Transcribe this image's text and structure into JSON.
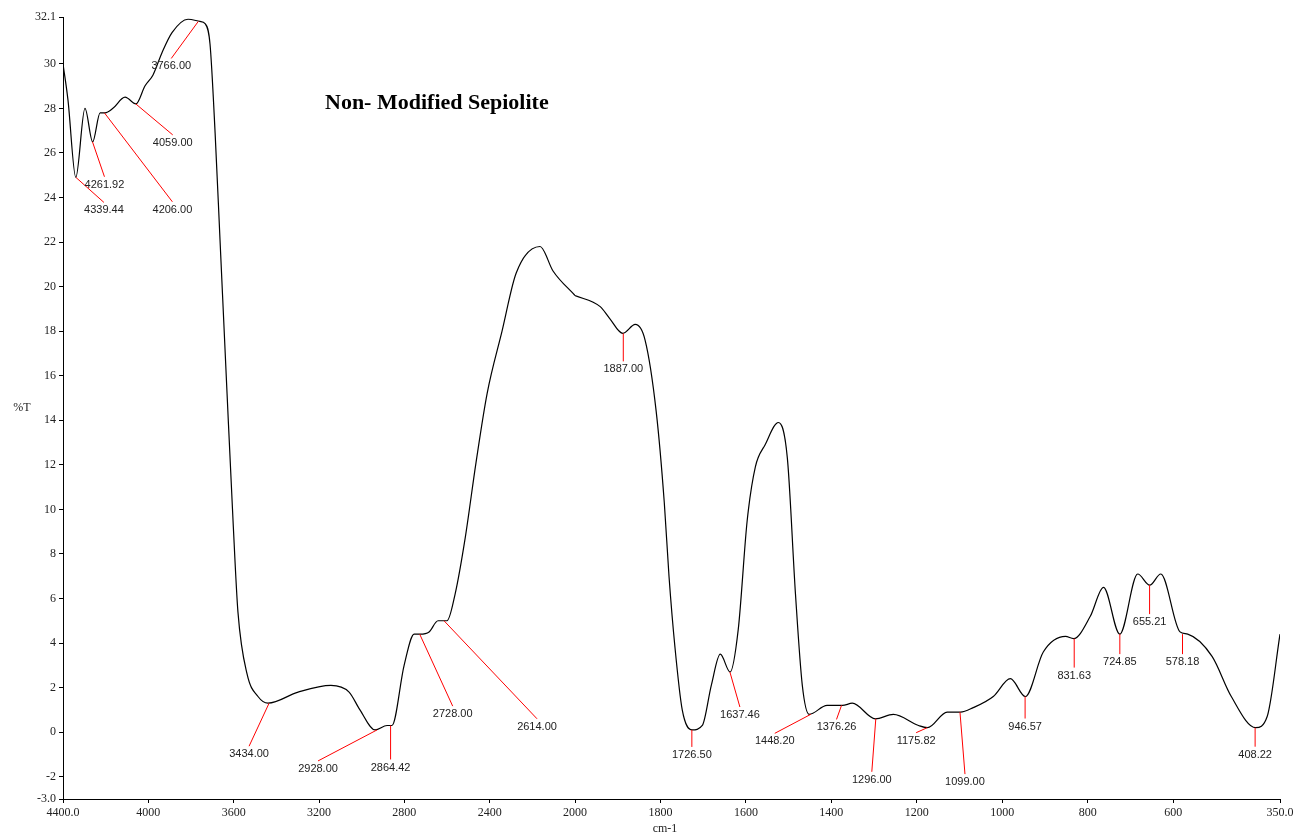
{
  "chart_data": [
    {
      "type": "line",
      "title": "Non- Modified Sepiolite",
      "ylabel": "%T",
      "color": "#000000",
      "x": [
        4400,
        4377,
        4340,
        4297,
        4261,
        4226,
        4203,
        4166,
        4109,
        4058,
        4016,
        3978,
        3936,
        3889,
        3814,
        3758,
        3734,
        3711,
        3687,
        3664,
        3631,
        3603,
        3580,
        3537,
        3486,
        3439,
        3298,
        3144,
        3059,
        3008,
        2937,
        2881,
        2858,
        2801,
        2754,
        2726,
        2684,
        2642,
        2600,
        2562,
        2515,
        2464,
        2412,
        2342,
        2276,
        2164,
        2103,
        2000
      ],
      "values": [
        30.0,
        28.4,
        24.9,
        28.0,
        26.5,
        27.8,
        27.8,
        28.0,
        28.5,
        28.2,
        29.0,
        29.5,
        30.5,
        31.4,
        32.0,
        31.9,
        31.8,
        30.9,
        26.9,
        22.1,
        15.2,
        9.5,
        5.4,
        2.6,
        1.6,
        1.3,
        1.8,
        2.1,
        1.8,
        1.0,
        0.1,
        0.3,
        0.3,
        3.0,
        4.4,
        4.4,
        4.5,
        5.0,
        5.0,
        6.2,
        8.7,
        12.1,
        15.2,
        18.0,
        20.6,
        21.8,
        20.7,
        19.6
      ],
      "xlim": [
        4400,
        2000
      ],
      "xticks": [
        {
          "value": 4400,
          "label": "4400.0"
        },
        4000,
        3600,
        3200,
        2800,
        2400
      ],
      "ylim": [
        -3,
        32.1
      ],
      "yticks": [
        {
          "value": -3,
          "label": "-3.0"
        },
        -2,
        0,
        2,
        4,
        6,
        8,
        10,
        12,
        14,
        16,
        18,
        20,
        22,
        24,
        26,
        28,
        30,
        {
          "value": 32.1,
          "label": "32.1"
        }
      ],
      "annotations": [
        {
          "text": "4339.44",
          "x": 4339.44,
          "y": 24.9
        },
        {
          "text": "4261.92",
          "x": 4261.92,
          "y": 26.5
        },
        {
          "text": "4206.00",
          "x": 4206,
          "y": 27.8
        },
        {
          "text": "4059.00",
          "x": 4059,
          "y": 28.2
        },
        {
          "text": "3766.00",
          "x": 3766,
          "y": 31.9
        },
        {
          "text": "3434.00",
          "x": 3434,
          "y": 1.3
        },
        {
          "text": "2928.00",
          "x": 2928,
          "y": 0.1
        },
        {
          "text": "2864.42",
          "x": 2864.42,
          "y": 0.3
        },
        {
          "text": "2728.00",
          "x": 2728,
          "y": 4.4
        },
        {
          "text": "2614.00",
          "x": 2614,
          "y": 5.0
        }
      ]
    },
    {
      "type": "line",
      "xlabel": "cm-1",
      "color": "#000000",
      "tick_labels": "x",
      "x": [
        2000,
        1941,
        1920,
        1888,
        1859,
        1836,
        1810,
        1791,
        1780,
        1766,
        1749,
        1726,
        1702,
        1681,
        1660,
        1637,
        1618,
        1597,
        1578,
        1555,
        1524,
        1503,
        1484,
        1468,
        1452,
        1410,
        1374,
        1351,
        1297,
        1255,
        1196,
        1175,
        1129,
        1098,
        1068,
        1021,
        981,
        946,
        904,
        852,
        833,
        794,
        763,
        725,
        683,
        655,
        629,
        584,
        566,
        509,
        464,
        407,
        380,
        350
      ],
      "values": [
        19.6,
        19.1,
        18.6,
        17.9,
        18.3,
        17.6,
        14.4,
        10.3,
        7.0,
        3.8,
        1.0,
        0.1,
        0.3,
        2.1,
        3.5,
        2.7,
        4.6,
        9.5,
        11.9,
        12.9,
        13.9,
        12.3,
        6.2,
        2.1,
        0.8,
        1.2,
        1.2,
        1.3,
        0.6,
        0.8,
        0.3,
        0.2,
        0.9,
        0.9,
        1.1,
        1.6,
        2.4,
        1.6,
        3.6,
        4.3,
        4.2,
        5.2,
        6.5,
        4.4,
        7.1,
        6.6,
        7.1,
        4.5,
        4.4,
        3.4,
        1.6,
        0.2,
        0.7,
        4.4
      ],
      "xlim": [
        2000,
        350
      ],
      "xticks": [
        2000,
        1800,
        1600,
        1400,
        1200,
        1000,
        800,
        600,
        {
          "value": 350,
          "label": "350.0"
        }
      ],
      "ylim": [
        -3,
        32.1
      ],
      "annotations": [
        {
          "text": "1887.00",
          "x": 1887,
          "y": 17.9
        },
        {
          "text": "1726.50",
          "x": 1726.5,
          "y": 0.1
        },
        {
          "text": "1637.46",
          "x": 1637.46,
          "y": 2.7
        },
        {
          "text": "1448.20",
          "x": 1448.2,
          "y": 0.8
        },
        {
          "text": "1376.26",
          "x": 1376.26,
          "y": 1.2
        },
        {
          "text": "1296.00",
          "x": 1296,
          "y": 0.6
        },
        {
          "text": "1175.82",
          "x": 1175.82,
          "y": 0.2
        },
        {
          "text": "1099.00",
          "x": 1099,
          "y": 0.9
        },
        {
          "text": "946.57",
          "x": 946.57,
          "y": 1.6
        },
        {
          "text": "831.63",
          "x": 831.63,
          "y": 4.2
        },
        {
          "text": "724.85",
          "x": 724.85,
          "y": 4.4
        },
        {
          "text": "655.21",
          "x": 655.21,
          "y": 6.6
        },
        {
          "text": "578.18",
          "x": 578.18,
          "y": 4.4
        },
        {
          "text": "408.22",
          "x": 408.22,
          "y": 0.2
        }
      ]
    }
  ]
}
